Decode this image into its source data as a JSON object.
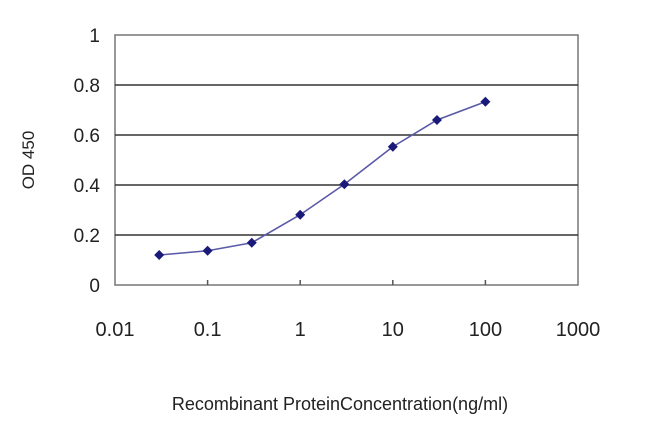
{
  "chart_data": {
    "type": "line",
    "title": "",
    "xlabel": "Recombinant ProteinConcentration(ng/ml)",
    "ylabel": "OD 450",
    "x_scale": "log",
    "xlim": [
      0.01,
      1000
    ],
    "ylim": [
      0,
      1
    ],
    "x_ticks": [
      "0.01",
      "0.1",
      "1",
      "10",
      "100",
      "1000"
    ],
    "y_ticks": [
      "0",
      "0.2",
      "0.4",
      "0.6",
      "0.8",
      "1"
    ],
    "grid": "horizontal",
    "series": [
      {
        "x": [
          0.03,
          0.1,
          0.3,
          1,
          3,
          10,
          30,
          100
        ],
        "y": [
          0.12,
          0.137,
          0.169,
          0.281,
          0.403,
          0.553,
          0.66,
          0.733
        ],
        "color": "#1a1a7a",
        "line_color": "#5a5aa8"
      }
    ]
  }
}
